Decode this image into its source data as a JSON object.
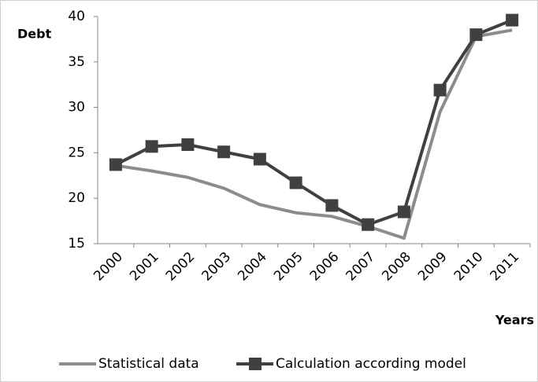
{
  "chart_data": {
    "type": "line",
    "y_label": "Debt",
    "x_label": "Years",
    "categories": [
      "2000",
      "2001",
      "2002",
      "2003",
      "2004",
      "2005",
      "2006",
      "2007",
      "2008",
      "2009",
      "2010",
      "2011"
    ],
    "series": [
      {
        "name": "Statistical data",
        "color": "#8c8c8c",
        "marker": "none",
        "values": [
          23.6,
          23.0,
          22.3,
          21.1,
          19.3,
          18.4,
          18.0,
          16.9,
          15.6,
          29.5,
          37.8,
          38.5
        ]
      },
      {
        "name": "Calculation according model",
        "color": "#404040",
        "marker": "square",
        "values": [
          23.7,
          25.7,
          25.9,
          25.1,
          24.3,
          21.7,
          19.2,
          17.1,
          18.5,
          31.9,
          38.0,
          39.6
        ]
      }
    ],
    "ylim": [
      15,
      40
    ],
    "yticks": [
      15,
      20,
      25,
      30,
      35,
      40
    ],
    "grid": false,
    "legend": "bottom"
  }
}
